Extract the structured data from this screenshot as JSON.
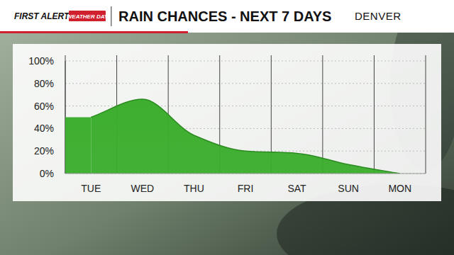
{
  "header": {
    "brand": "FIRST ALERT",
    "badge": "WEATHER DAY"
  },
  "chart_data": {
    "type": "area",
    "title": "RAIN CHANCES - NEXT 7 DAYS",
    "subtitle": "DENVER",
    "categories": [
      "TUE",
      "WED",
      "THU",
      "FRI",
      "SAT",
      "SUN",
      "MON"
    ],
    "values": [
      50,
      66,
      34,
      20,
      18,
      8,
      0
    ],
    "color": "#3aad2c",
    "ylim": [
      0,
      100
    ],
    "yticks": [
      {
        "value": 0,
        "label": "0%"
      },
      {
        "value": 20,
        "label": "20%"
      },
      {
        "value": 40,
        "label": "40%"
      },
      {
        "value": 60,
        "label": "60%"
      },
      {
        "value": 80,
        "label": "80%"
      },
      {
        "value": 100,
        "label": "100%"
      }
    ],
    "grid": true
  }
}
